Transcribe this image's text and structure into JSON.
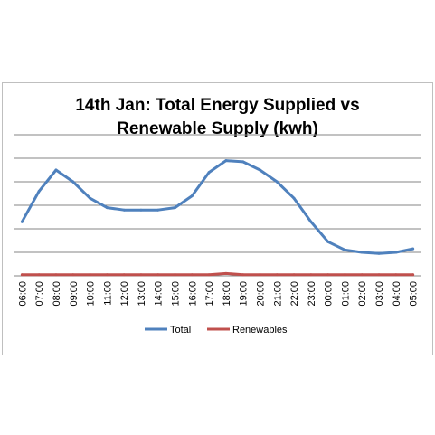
{
  "chart_data": {
    "type": "line",
    "title_line1": "14th Jan: Total Energy Supplied vs",
    "title_line2": "Renewable Supply (kwh)",
    "categories": [
      "06:00",
      "07:00",
      "08:00",
      "09:00",
      "10:00",
      "11:00",
      "12:00",
      "13:00",
      "14:00",
      "15:00",
      "16:00",
      "17:00",
      "18:00",
      "19:00",
      "20:00",
      "21:00",
      "22:00",
      "23:00",
      "00:00",
      "01:00",
      "02:00",
      "03:00",
      "04:00",
      "05:00"
    ],
    "series": [
      {
        "name": "Total",
        "color": "#4f81bd",
        "values": [
          2.3,
          3.6,
          4.5,
          4.0,
          3.3,
          2.9,
          2.8,
          2.8,
          2.8,
          2.9,
          3.4,
          4.4,
          4.9,
          4.85,
          4.5,
          4.0,
          3.3,
          2.3,
          1.45,
          1.1,
          1.0,
          0.95,
          1.0,
          1.15
        ]
      },
      {
        "name": "Renewables",
        "color": "#c0504d",
        "values": [
          0.05,
          0.05,
          0.05,
          0.05,
          0.05,
          0.05,
          0.05,
          0.05,
          0.05,
          0.05,
          0.05,
          0.05,
          0.1,
          0.05,
          0.05,
          0.05,
          0.05,
          0.05,
          0.05,
          0.05,
          0.05,
          0.05,
          0.05,
          0.05
        ]
      }
    ],
    "ylim": [
      0,
      6
    ],
    "grid": true,
    "legend_position": "bottom",
    "xlabel": "",
    "ylabel": ""
  }
}
